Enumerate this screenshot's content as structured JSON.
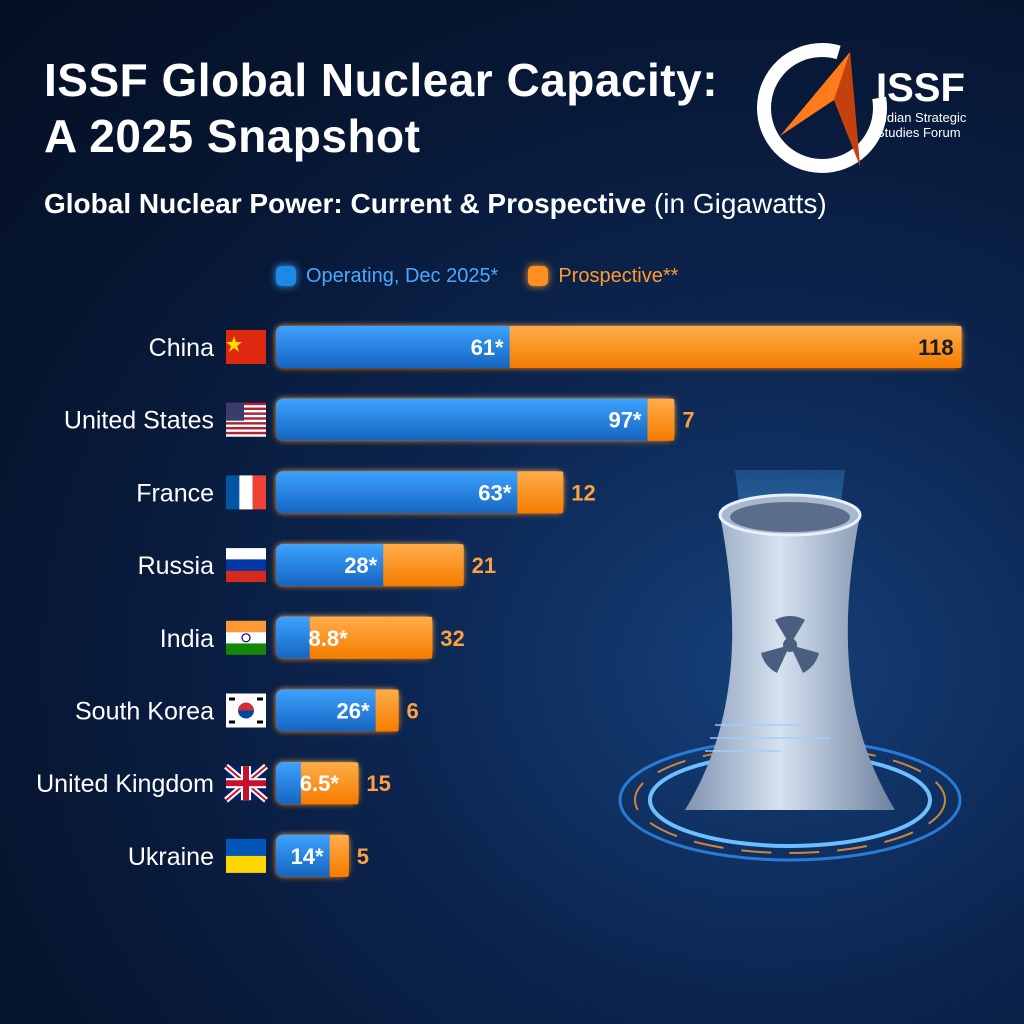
{
  "header": {
    "title": "ISSF Global Nuclear Capacity: A 2025 Snapshot",
    "subtitle": "Global Nuclear Power: Current & Prospective",
    "unit": "(in Gigawatts)"
  },
  "logo": {
    "name": "ISSF",
    "full_name": "Indian Strategic Studies Forum"
  },
  "colors": {
    "operating": "#1e88e5",
    "prospective": "#ff8f1f",
    "background": "#0a1f44"
  },
  "chart_data": {
    "type": "bar",
    "orientation": "horizontal",
    "stacked": true,
    "title": "Global Nuclear Power: Current & Prospective (in Gigawatts)",
    "xlabel": "",
    "ylabel": "",
    "legend_position": "top",
    "categories": [
      "China",
      "United States",
      "France",
      "Russia",
      "India",
      "South Korea",
      "United Kingdom",
      "Ukraine"
    ],
    "series": [
      {
        "name": "Operating, Dec 2025*",
        "values": [
          61,
          97,
          63,
          28,
          8.8,
          26,
          6.5,
          14
        ],
        "labels": [
          "61*",
          "97*",
          "63*",
          "28*",
          "8.8*",
          "26*",
          "6.5*",
          "14*"
        ]
      },
      {
        "name": "Prospective**",
        "values": [
          118,
          7,
          12,
          21,
          32,
          6,
          15,
          5
        ],
        "labels": [
          "118",
          "7",
          "12",
          "21",
          "32",
          "6",
          "15",
          "5"
        ]
      }
    ],
    "flags": [
      "china-flag-icon",
      "usa-flag-icon",
      "france-flag-icon",
      "russia-flag-icon",
      "india-flag-icon",
      "south-korea-flag-icon",
      "uk-flag-icon",
      "ukraine-flag-icon"
    ]
  }
}
